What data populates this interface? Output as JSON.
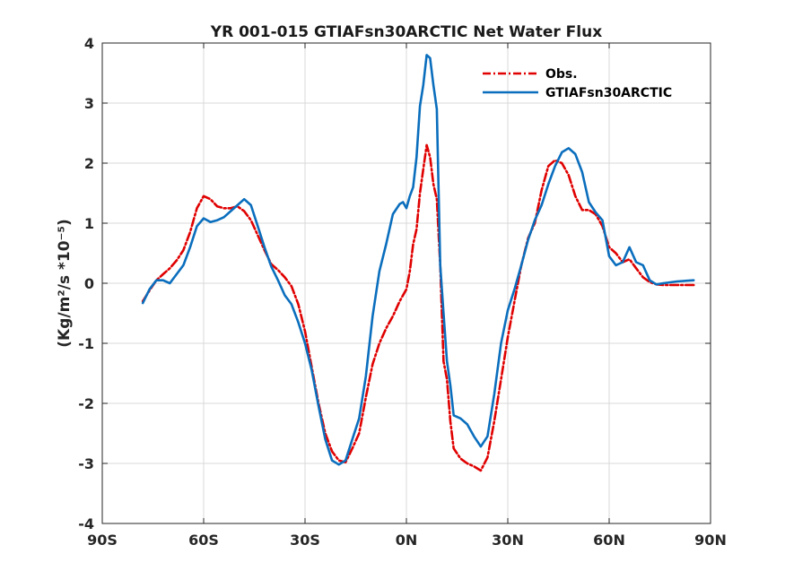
{
  "chart_data": {
    "type": "line",
    "title": "YR 001-015 GTIAFsn30ARCTIC  Net Water Flux",
    "ylabel": "(Kg/m²/s *10⁻⁵)",
    "xlim": [
      -90,
      90
    ],
    "ylim": [
      -4,
      4
    ],
    "x_ticks": [
      -90,
      -60,
      -30,
      0,
      30,
      60,
      90
    ],
    "x_tick_labels": [
      "90S",
      "60S",
      "30S",
      "0N",
      "30N",
      "60N",
      "90N"
    ],
    "y_ticks": [
      -4,
      -3,
      -2,
      -1,
      0,
      1,
      2,
      3,
      4
    ],
    "y_tick_labels": [
      "-4",
      "-3",
      "-2",
      "-1",
      "0",
      "1",
      "2",
      "3",
      "4"
    ],
    "grid": true,
    "legend_position": "top-right",
    "series": [
      {
        "name": "Obs.",
        "color": "#e00000",
        "dash": "dash-dot",
        "points": [
          [
            -78,
            -0.3
          ],
          [
            -76,
            -0.12
          ],
          [
            -74,
            0.05
          ],
          [
            -72,
            0.15
          ],
          [
            -70,
            0.25
          ],
          [
            -68,
            0.38
          ],
          [
            -66,
            0.55
          ],
          [
            -64,
            0.85
          ],
          [
            -62,
            1.25
          ],
          [
            -60,
            1.45
          ],
          [
            -58,
            1.4
          ],
          [
            -56,
            1.28
          ],
          [
            -54,
            1.25
          ],
          [
            -52,
            1.25
          ],
          [
            -50,
            1.28
          ],
          [
            -48,
            1.2
          ],
          [
            -46,
            1.05
          ],
          [
            -44,
            0.8
          ],
          [
            -42,
            0.55
          ],
          [
            -40,
            0.32
          ],
          [
            -38,
            0.22
          ],
          [
            -36,
            0.1
          ],
          [
            -34,
            -0.05
          ],
          [
            -32,
            -0.35
          ],
          [
            -30,
            -0.8
          ],
          [
            -28,
            -1.4
          ],
          [
            -26,
            -2.0
          ],
          [
            -24,
            -2.5
          ],
          [
            -22,
            -2.8
          ],
          [
            -20,
            -2.95
          ],
          [
            -18,
            -2.98
          ],
          [
            -16,
            -2.75
          ],
          [
            -14,
            -2.5
          ],
          [
            -12,
            -1.9
          ],
          [
            -10,
            -1.35
          ],
          [
            -8,
            -1.0
          ],
          [
            -6,
            -0.75
          ],
          [
            -4,
            -0.55
          ],
          [
            -2,
            -0.3
          ],
          [
            0,
            -0.1
          ],
          [
            1,
            0.2
          ],
          [
            2,
            0.65
          ],
          [
            3,
            0.9
          ],
          [
            4,
            1.5
          ],
          [
            5,
            1.9
          ],
          [
            6,
            2.3
          ],
          [
            7,
            2.1
          ],
          [
            8,
            1.65
          ],
          [
            9,
            1.4
          ],
          [
            10,
            0.3
          ],
          [
            11,
            -1.3
          ],
          [
            12,
            -1.6
          ],
          [
            13,
            -2.3
          ],
          [
            14,
            -2.75
          ],
          [
            16,
            -2.92
          ],
          [
            18,
            -3.0
          ],
          [
            20,
            -3.05
          ],
          [
            22,
            -3.12
          ],
          [
            24,
            -2.9
          ],
          [
            26,
            -2.3
          ],
          [
            28,
            -1.6
          ],
          [
            30,
            -0.9
          ],
          [
            32,
            -0.3
          ],
          [
            34,
            0.3
          ],
          [
            36,
            0.75
          ],
          [
            38,
            1.0
          ],
          [
            40,
            1.55
          ],
          [
            42,
            1.95
          ],
          [
            44,
            2.05
          ],
          [
            46,
            2.0
          ],
          [
            48,
            1.8
          ],
          [
            50,
            1.45
          ],
          [
            52,
            1.22
          ],
          [
            54,
            1.22
          ],
          [
            56,
            1.15
          ],
          [
            58,
            0.95
          ],
          [
            60,
            0.6
          ],
          [
            62,
            0.5
          ],
          [
            64,
            0.35
          ],
          [
            66,
            0.4
          ],
          [
            68,
            0.25
          ],
          [
            70,
            0.1
          ],
          [
            72,
            0.02
          ],
          [
            74,
            -0.02
          ],
          [
            76,
            -0.03
          ],
          [
            80,
            -0.03
          ],
          [
            85,
            -0.03
          ]
        ]
      },
      {
        "name": "GTIAFsn30ARCTIC",
        "color": "#0a6ebd",
        "dash": "solid",
        "points": [
          [
            -78,
            -0.33
          ],
          [
            -76,
            -0.1
          ],
          [
            -74,
            0.05
          ],
          [
            -72,
            0.05
          ],
          [
            -70,
            0.0
          ],
          [
            -68,
            0.15
          ],
          [
            -66,
            0.3
          ],
          [
            -64,
            0.6
          ],
          [
            -62,
            0.95
          ],
          [
            -60,
            1.08
          ],
          [
            -58,
            1.02
          ],
          [
            -56,
            1.05
          ],
          [
            -54,
            1.1
          ],
          [
            -52,
            1.2
          ],
          [
            -50,
            1.3
          ],
          [
            -48,
            1.4
          ],
          [
            -46,
            1.3
          ],
          [
            -44,
            0.95
          ],
          [
            -42,
            0.6
          ],
          [
            -40,
            0.28
          ],
          [
            -38,
            0.05
          ],
          [
            -36,
            -0.2
          ],
          [
            -34,
            -0.35
          ],
          [
            -32,
            -0.65
          ],
          [
            -30,
            -1.0
          ],
          [
            -28,
            -1.45
          ],
          [
            -26,
            -2.05
          ],
          [
            -24,
            -2.6
          ],
          [
            -22,
            -2.95
          ],
          [
            -20,
            -3.02
          ],
          [
            -18,
            -2.95
          ],
          [
            -16,
            -2.6
          ],
          [
            -14,
            -2.25
          ],
          [
            -12,
            -1.55
          ],
          [
            -10,
            -0.55
          ],
          [
            -8,
            0.2
          ],
          [
            -6,
            0.65
          ],
          [
            -4,
            1.15
          ],
          [
            -2,
            1.32
          ],
          [
            -1,
            1.35
          ],
          [
            0,
            1.25
          ],
          [
            1,
            1.45
          ],
          [
            2,
            1.6
          ],
          [
            3,
            2.1
          ],
          [
            4,
            2.95
          ],
          [
            5,
            3.3
          ],
          [
            6,
            3.8
          ],
          [
            7,
            3.75
          ],
          [
            8,
            3.3
          ],
          [
            9,
            2.9
          ],
          [
            10,
            0.3
          ],
          [
            11,
            -0.5
          ],
          [
            12,
            -1.3
          ],
          [
            13,
            -1.7
          ],
          [
            14,
            -2.2
          ],
          [
            16,
            -2.25
          ],
          [
            18,
            -2.35
          ],
          [
            20,
            -2.55
          ],
          [
            22,
            -2.72
          ],
          [
            24,
            -2.55
          ],
          [
            26,
            -1.85
          ],
          [
            28,
            -1.0
          ],
          [
            30,
            -0.45
          ],
          [
            32,
            -0.1
          ],
          [
            34,
            0.3
          ],
          [
            36,
            0.72
          ],
          [
            38,
            1.05
          ],
          [
            40,
            1.3
          ],
          [
            42,
            1.65
          ],
          [
            44,
            1.95
          ],
          [
            46,
            2.18
          ],
          [
            48,
            2.25
          ],
          [
            50,
            2.15
          ],
          [
            52,
            1.85
          ],
          [
            54,
            1.35
          ],
          [
            56,
            1.18
          ],
          [
            58,
            1.05
          ],
          [
            60,
            0.45
          ],
          [
            62,
            0.3
          ],
          [
            64,
            0.35
          ],
          [
            66,
            0.6
          ],
          [
            68,
            0.35
          ],
          [
            70,
            0.3
          ],
          [
            72,
            0.05
          ],
          [
            74,
            -0.02
          ],
          [
            76,
            0.0
          ],
          [
            80,
            0.03
          ],
          [
            85,
            0.05
          ]
        ]
      }
    ]
  }
}
